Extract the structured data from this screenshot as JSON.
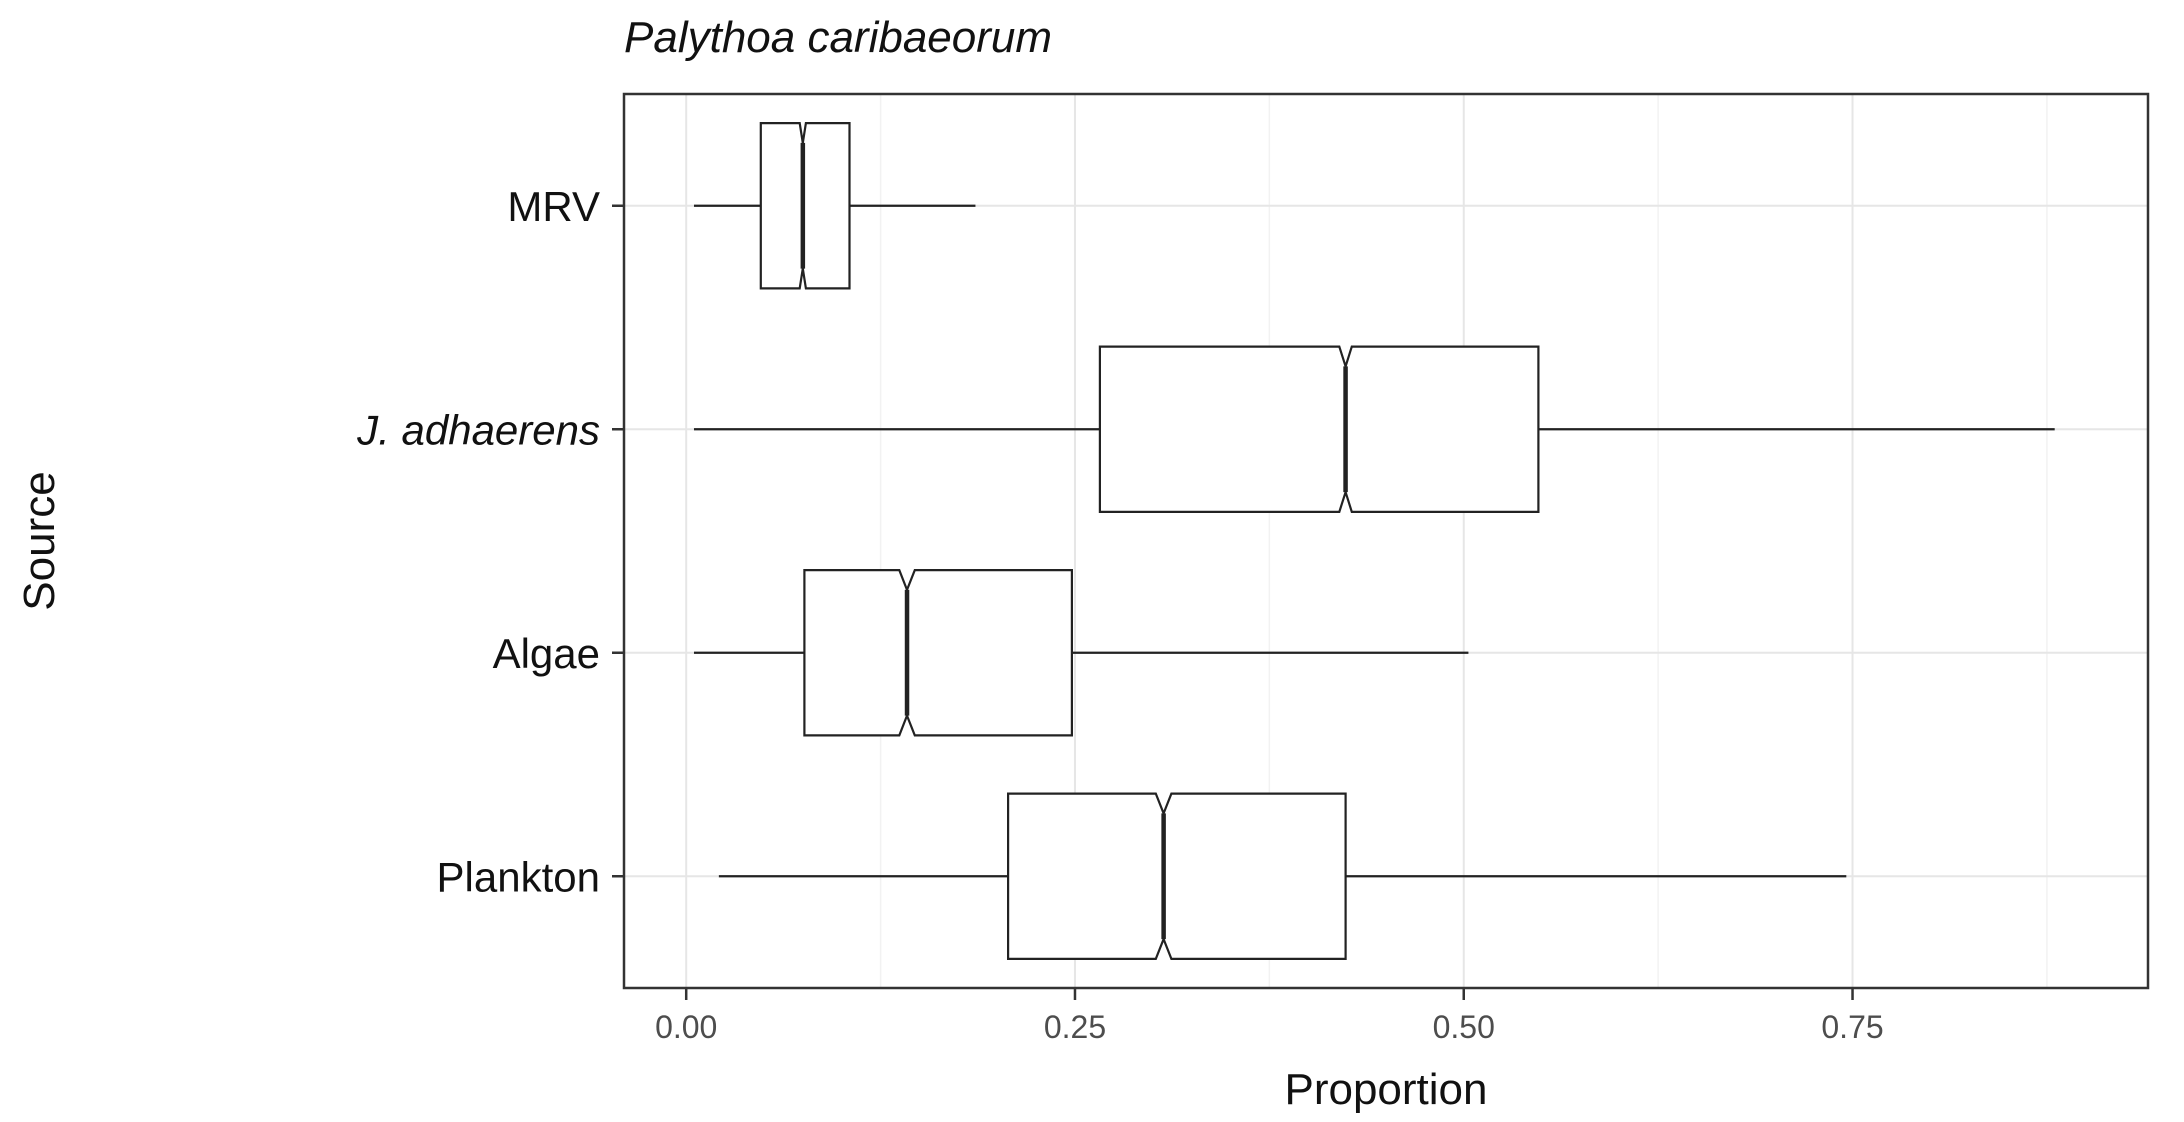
{
  "chart_data": {
    "type": "boxplot",
    "orientation": "horizontal",
    "notched": true,
    "title": "Palythoa caribaeorum",
    "xlabel": "Proportion",
    "ylabel": "Source",
    "xlim": [
      -0.04,
      0.94
    ],
    "xticks": [
      0.0,
      0.25,
      0.5,
      0.75
    ],
    "xtick_labels": [
      "0.00",
      "0.25",
      "0.50",
      "0.75"
    ],
    "grid": true,
    "categories": [
      "MRV",
      "J. adhaerens",
      "Algae",
      "Plankton"
    ],
    "italic_categories": [
      "J. adhaerens"
    ],
    "series": [
      {
        "name": "MRV",
        "min": 0.005,
        "q1": 0.048,
        "median": 0.075,
        "q3": 0.105,
        "max": 0.186,
        "notch_low": 0.073,
        "notch_high": 0.077
      },
      {
        "name": "J. adhaerens",
        "min": 0.005,
        "q1": 0.266,
        "median": 0.424,
        "q3": 0.548,
        "max": 0.88,
        "notch_low": 0.42,
        "notch_high": 0.428
      },
      {
        "name": "Algae",
        "min": 0.005,
        "q1": 0.076,
        "median": 0.142,
        "q3": 0.248,
        "max": 0.503,
        "notch_low": 0.137,
        "notch_high": 0.147
      },
      {
        "name": "Plankton",
        "min": 0.021,
        "q1": 0.207,
        "median": 0.307,
        "q3": 0.424,
        "max": 0.746,
        "notch_low": 0.302,
        "notch_high": 0.312
      }
    ]
  }
}
